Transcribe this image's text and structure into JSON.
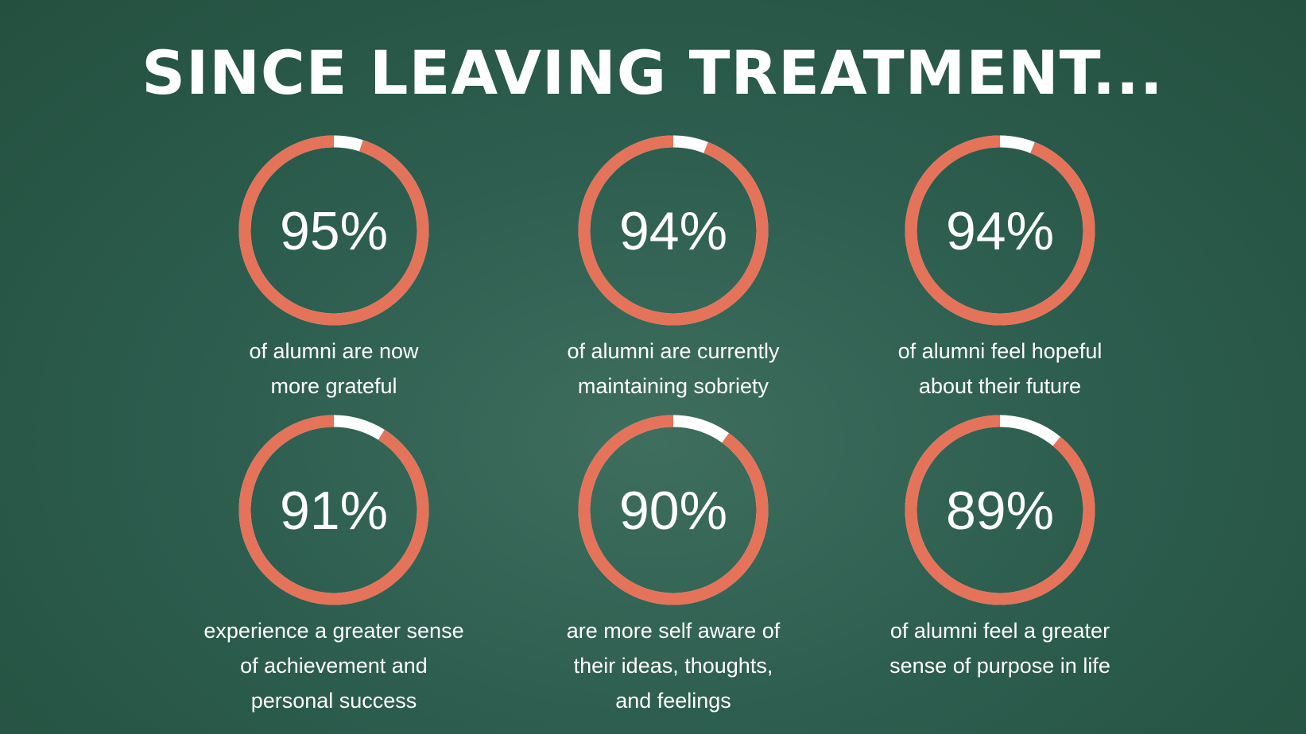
{
  "chart_data": {
    "type": "donut",
    "title": "SINCE LEAVING TREATMENT...",
    "values": [
      95,
      94,
      94,
      91,
      90,
      89
    ],
    "value_labels": [
      "95%",
      "94%",
      "94%",
      "91%",
      "90%",
      "89%"
    ],
    "categories": [
      "of alumni are now\nmore grateful",
      "of alumni are currently\nmaintaining sobriety",
      "of alumni feel hopeful\nabout their future",
      "experience a greater sense\nof achievement and\npersonal success",
      "are more self aware of\ntheir ideas, thoughts,\nand feelings",
      "of alumni feel a greater\nsense of purpose in life"
    ],
    "color": "#e4735a",
    "track_color": "#ffffff",
    "max": 100
  }
}
